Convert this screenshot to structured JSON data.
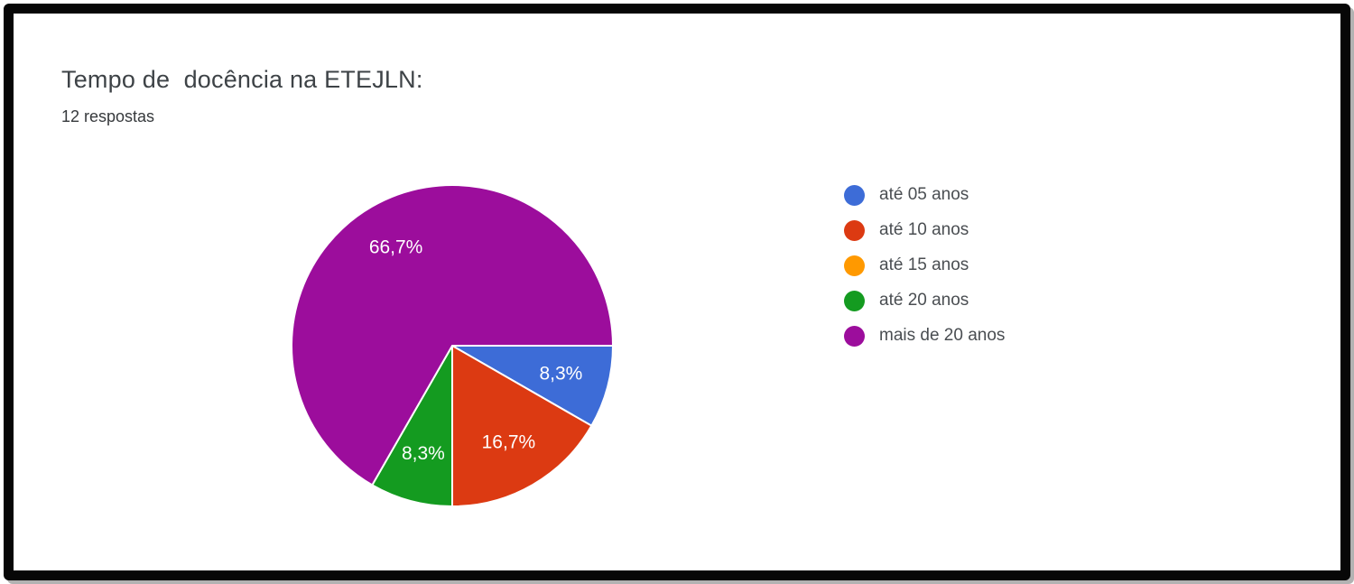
{
  "header": {
    "title": "Tempo de  docência na ETEJLN:",
    "responses": "12 respostas"
  },
  "chart_data": {
    "type": "pie",
    "title": "Tempo de  docência na ETEJLN:",
    "subtitle": "12 respostas",
    "legend_position": "right",
    "start_angle_deg": 0,
    "direction": "clockwise",
    "categories": [
      "até 05 anos",
      "até 10 anos",
      "até 15 anos",
      "até 20 anos",
      "mais de 20 anos"
    ],
    "percentages": [
      8.3,
      16.7,
      0,
      8.3,
      66.7
    ],
    "percent_labels": [
      "8,3%",
      "16,7%",
      "",
      "8,3%",
      "66,7%"
    ],
    "colors": [
      "#3D6CD7",
      "#DC3A12",
      "#FF9900",
      "#149B20",
      "#9C0D9C"
    ],
    "slice_border_color": "#ffffff",
    "label_color": "#ffffff"
  }
}
